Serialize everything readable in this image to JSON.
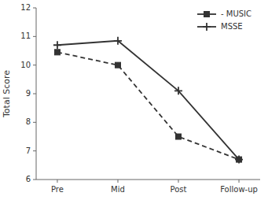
{
  "chart_data": {
    "type": "line",
    "categories": [
      "Pre",
      "Mid",
      "Post",
      "Follow-up"
    ],
    "series": [
      {
        "name": "- MUSIC",
        "color": "#333333",
        "values": [
          10.45,
          10.0,
          7.5,
          6.7
        ],
        "line_style": "dashed",
        "marker": "square"
      },
      {
        "name": "MSSE",
        "color": "#333333",
        "values": [
          10.7,
          10.85,
          9.1,
          6.7
        ],
        "line_style": "solid",
        "marker": "plus"
      }
    ],
    "ylabel": "Total Score",
    "ylim": [
      6,
      12
    ],
    "yticks": [
      6,
      7,
      8,
      9,
      10,
      11,
      12
    ],
    "grid": false,
    "legend": "upper right"
  }
}
